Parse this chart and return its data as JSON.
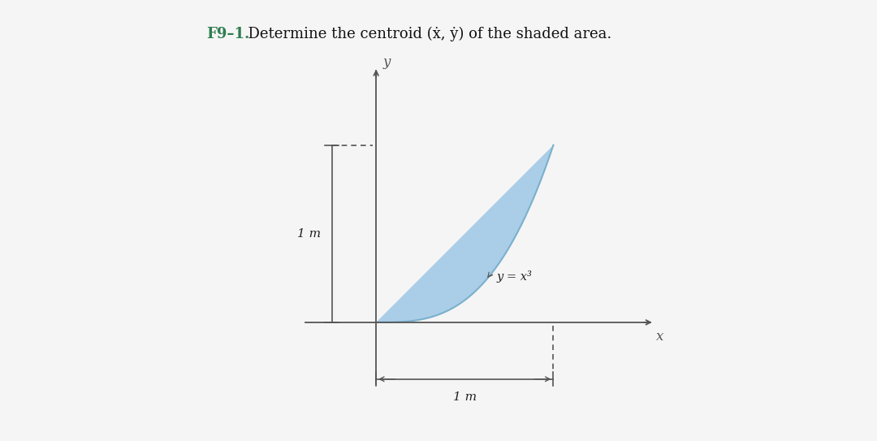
{
  "title_bold": "F9–1.",
  "title_normal": "  Determine the centroid (ẋ, ẏ) of the shaded area.",
  "shaded_color": "#aacde8",
  "curve_label": "y = x³",
  "dim_label_left": "1 m",
  "dim_label_bottom": "1 m",
  "axis_x_label": "x",
  "axis_y_label": "y",
  "background_color": "#f5f5f5",
  "line_color": "#555555",
  "text_color": "#222222",
  "title_color_bold": "#2e7d50",
  "title_color_normal": "#111111",
  "fig_width": 10.8,
  "fig_height": 5.43,
  "fig_dpi": 100
}
